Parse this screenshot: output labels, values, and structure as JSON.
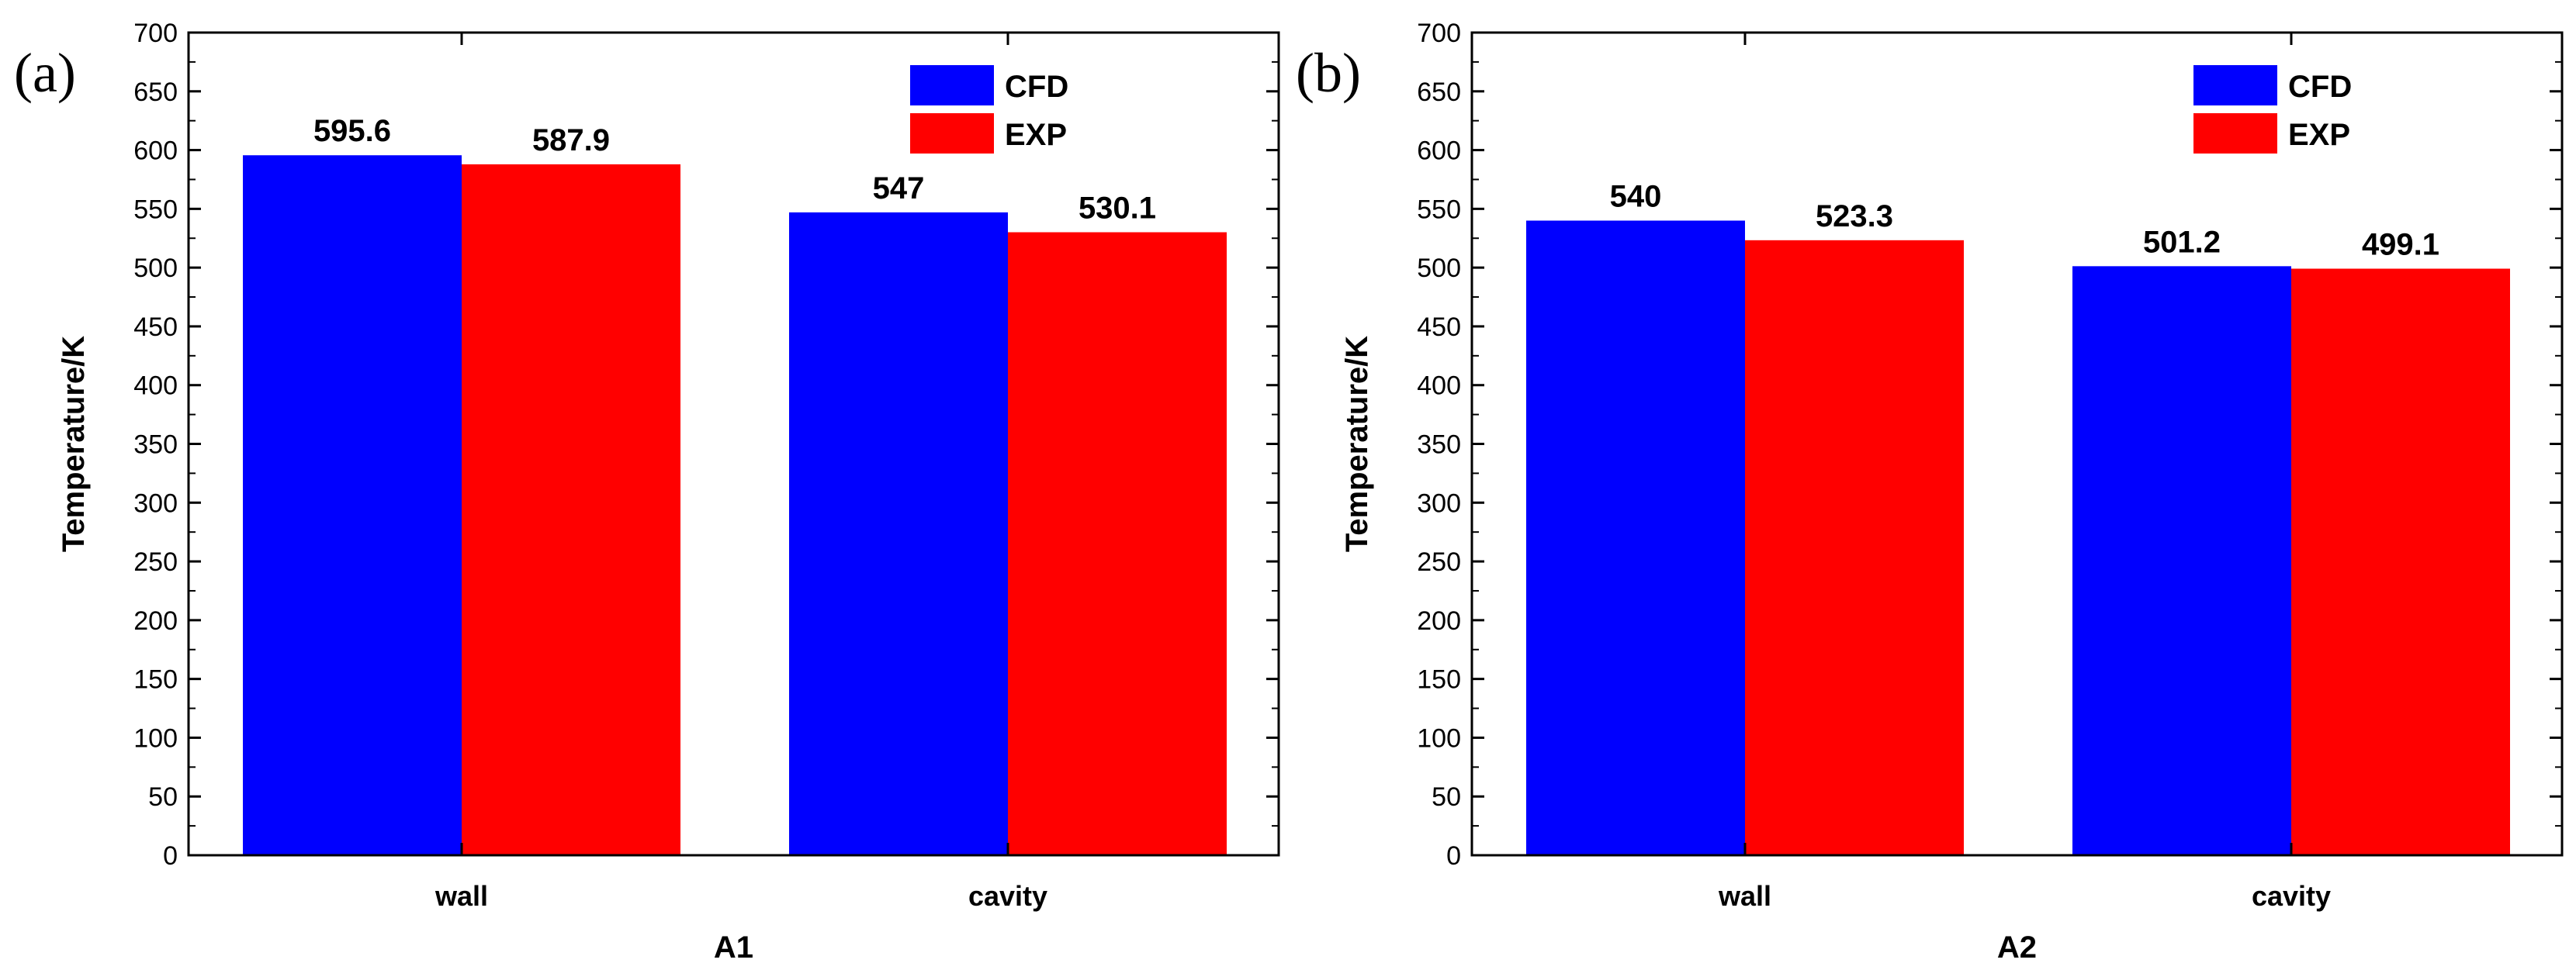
{
  "chart_data": [
    {
      "type": "bar",
      "panel_label": "(a)",
      "title": "",
      "xlabel": "A1",
      "ylabel": "Temperature/K",
      "categories": [
        "wall",
        "cavity"
      ],
      "series": [
        {
          "name": "CFD",
          "values": [
            595.6,
            547
          ],
          "labels": [
            "595.6",
            "547"
          ]
        },
        {
          "name": "EXP",
          "values": [
            587.9,
            530.1
          ],
          "labels": [
            "587.9",
            "530.1"
          ]
        }
      ],
      "ylim": [
        0,
        700
      ],
      "yticks": [
        "0",
        "50",
        "100",
        "150",
        "200",
        "250",
        "300",
        "350",
        "400",
        "450",
        "500",
        "550",
        "600",
        "650",
        "700"
      ],
      "legend_position": "top-right"
    },
    {
      "type": "bar",
      "panel_label": "(b)",
      "title": "",
      "xlabel": "A2",
      "ylabel": "Temperature/K",
      "categories": [
        "wall",
        "cavity"
      ],
      "series": [
        {
          "name": "CFD",
          "values": [
            540,
            501.2
          ],
          "labels": [
            "540",
            "501.2"
          ]
        },
        {
          "name": "EXP",
          "values": [
            523.3,
            499.1
          ],
          "labels": [
            "523.3",
            "499.1"
          ]
        }
      ],
      "ylim": [
        0,
        700
      ],
      "yticks": [
        "0",
        "50",
        "100",
        "150",
        "200",
        "250",
        "300",
        "350",
        "400",
        "450",
        "500",
        "550",
        "600",
        "650",
        "700"
      ],
      "legend_position": "top-right"
    }
  ],
  "colors": {
    "CFD": "#0000ff",
    "EXP": "#ff0000",
    "axis": "#000000"
  }
}
